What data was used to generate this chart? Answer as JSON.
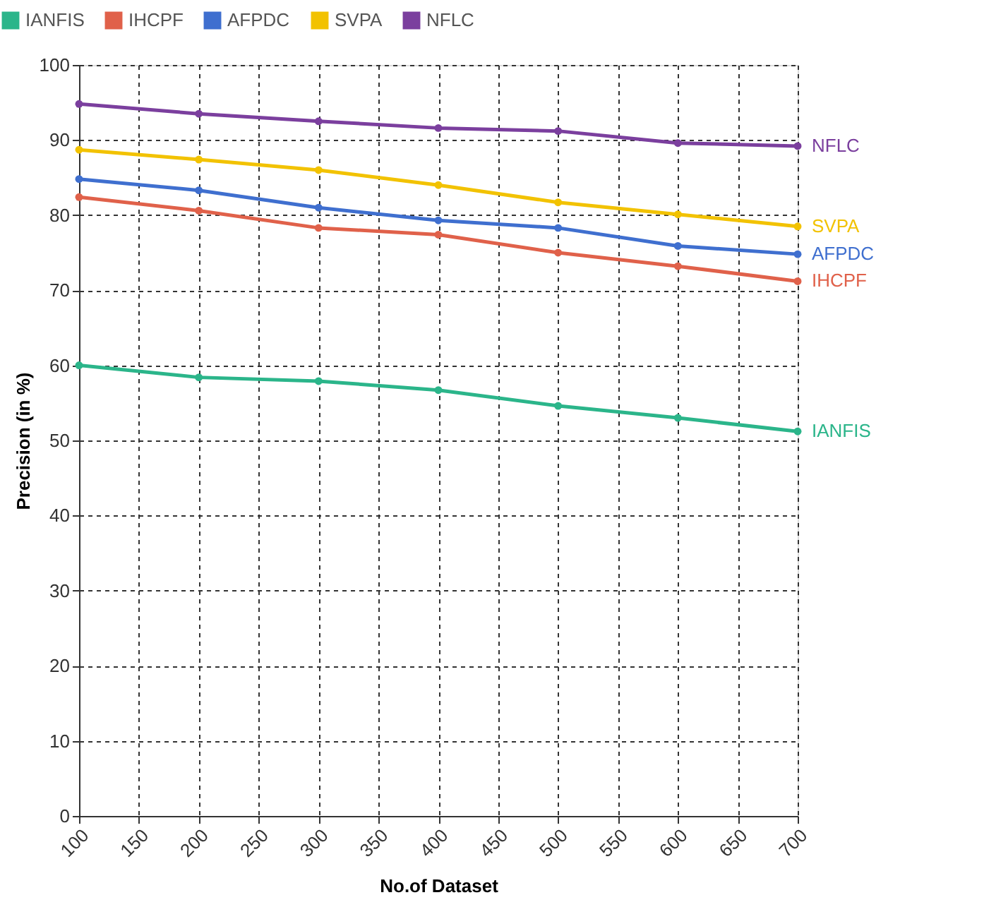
{
  "chart_data": {
    "type": "line",
    "xlabel": "No.of Dataset",
    "ylabel": "Precision (in %)",
    "x": [
      100,
      200,
      300,
      400,
      500,
      600,
      700
    ],
    "series": [
      {
        "name": "IANFIS",
        "color": "#2bb58a",
        "values": [
          60.0,
          58.4,
          57.9,
          56.7,
          54.6,
          53.0,
          51.2
        ]
      },
      {
        "name": "IHCPF",
        "color": "#e0614a",
        "values": [
          82.4,
          80.6,
          78.3,
          77.4,
          75.0,
          73.2,
          71.2
        ]
      },
      {
        "name": "AFPDC",
        "color": "#3f6fcf",
        "values": [
          84.8,
          83.3,
          81.0,
          79.3,
          78.3,
          75.9,
          74.8
        ]
      },
      {
        "name": "SVPA",
        "color": "#f2c200",
        "values": [
          88.7,
          87.4,
          86.0,
          84.0,
          81.7,
          80.1,
          78.5
        ]
      },
      {
        "name": "NFLC",
        "color": "#7b3f9e",
        "values": [
          94.8,
          93.5,
          92.5,
          91.6,
          91.2,
          89.6,
          89.2
        ]
      }
    ],
    "xlim": [
      100,
      700
    ],
    "xticks": [
      100,
      150,
      200,
      250,
      300,
      350,
      400,
      450,
      500,
      550,
      600,
      650,
      700
    ],
    "ylim": [
      0,
      100
    ],
    "yticks": [
      0,
      10,
      20,
      30,
      40,
      50,
      60,
      70,
      80,
      90,
      100
    ],
    "grid": true,
    "legend": "top left",
    "marker": "circle",
    "line_style": "solid"
  }
}
